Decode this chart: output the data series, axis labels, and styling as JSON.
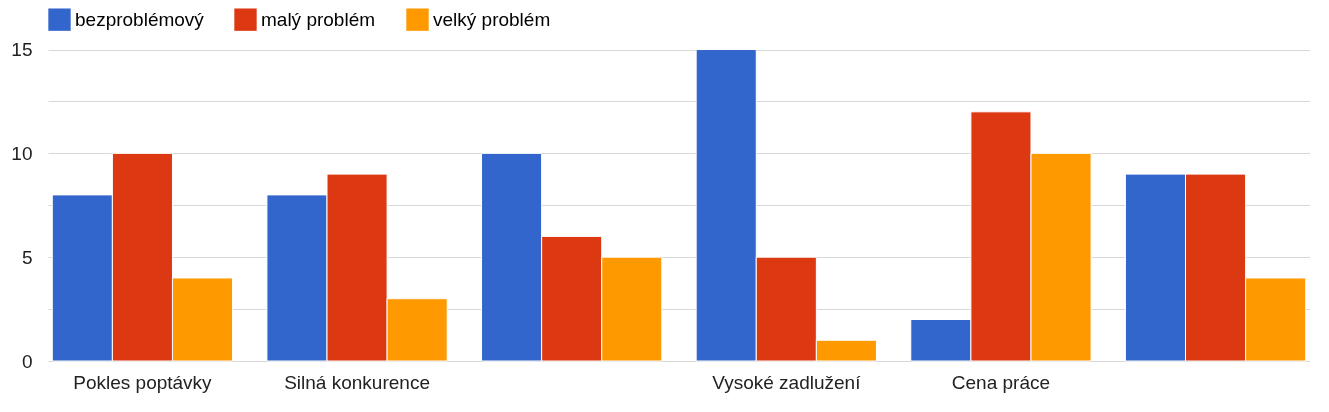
{
  "chart_data": {
    "type": "bar",
    "categories": [
      "Pokles poptávky",
      "Silná konkurence",
      null,
      "Vysoké zadlužení",
      "Cena práce",
      null
    ],
    "series": [
      {
        "name": "bezproblémový",
        "color": "#3366cc",
        "values": [
          8,
          8,
          10,
          15,
          2,
          9
        ]
      },
      {
        "name": "malý problém",
        "color": "#dc3912",
        "values": [
          10,
          9,
          6,
          5,
          12,
          9
        ]
      },
      {
        "name": "velký problém",
        "color": "#ff9900",
        "values": [
          4,
          3,
          5,
          1,
          10,
          4
        ]
      }
    ],
    "ylim": [
      0,
      17
    ],
    "yticks": [
      0,
      {
        "value": 2.5,
        "label": null
      },
      5,
      {
        "value": 7.5,
        "label": null
      },
      10,
      {
        "value": 12.5,
        "label": null
      },
      15
    ],
    "grid": "y",
    "legend": "top left"
  }
}
